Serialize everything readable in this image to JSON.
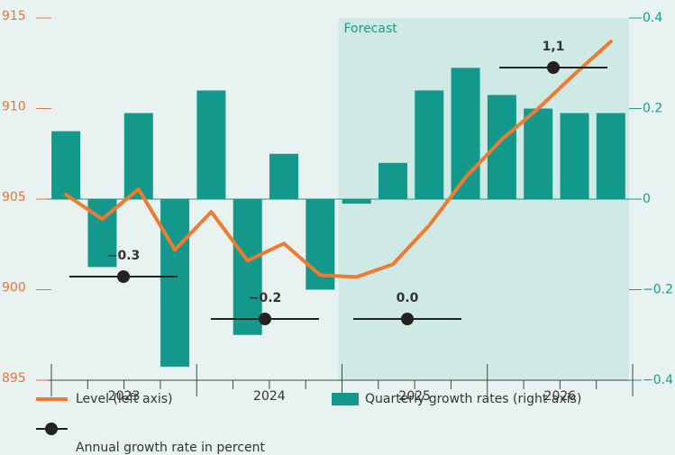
{
  "chart_data": {
    "type": "combo",
    "categories": [
      null,
      null,
      null,
      null,
      null,
      null,
      null,
      null,
      null,
      null,
      null,
      null,
      null,
      null,
      null,
      null
    ],
    "year_labels": [
      "2023",
      "2024",
      "2025",
      "2026"
    ],
    "annotation": "Forecast",
    "ylim": [
      895,
      915
    ],
    "yticks": [
      895,
      900,
      905,
      910,
      915
    ],
    "y2lim": [
      -0.4,
      0.4
    ],
    "y2ticks": [
      {
        "value": -0.4,
        "label": "−0.4"
      },
      {
        "value": -0.2,
        "label": "−0.2"
      },
      0,
      0.2,
      0.4
    ],
    "series": [
      {
        "name": "Level (left axis)",
        "type": "line",
        "color": "#f07a2f",
        "values": [
          905.25,
          903.9,
          905.55,
          902.2,
          904.3,
          901.6,
          902.55,
          900.8,
          900.7,
          901.4,
          903.55,
          906.2,
          908.3,
          910.0,
          911.9,
          913.7
        ]
      },
      {
        "name": "Quarterly growth rates (right axis)",
        "type": "bar",
        "axis": "y2",
        "color": "#12998b",
        "values": [
          0.15,
          -0.15,
          0.19,
          -0.37,
          0.24,
          -0.3,
          0.1,
          -0.2,
          -0.01,
          0.08,
          0.24,
          0.29,
          0.23,
          0.2,
          0.19,
          0.19
        ]
      }
    ],
    "annual": {
      "name": "Annual growth rate in percent",
      "color": "#222",
      "values": [
        -0.3,
        -0.2,
        0.0,
        1.1
      ],
      "value_labels": [
        "−0.3",
        "−0.2",
        "0.0",
        "1,1"
      ]
    }
  }
}
